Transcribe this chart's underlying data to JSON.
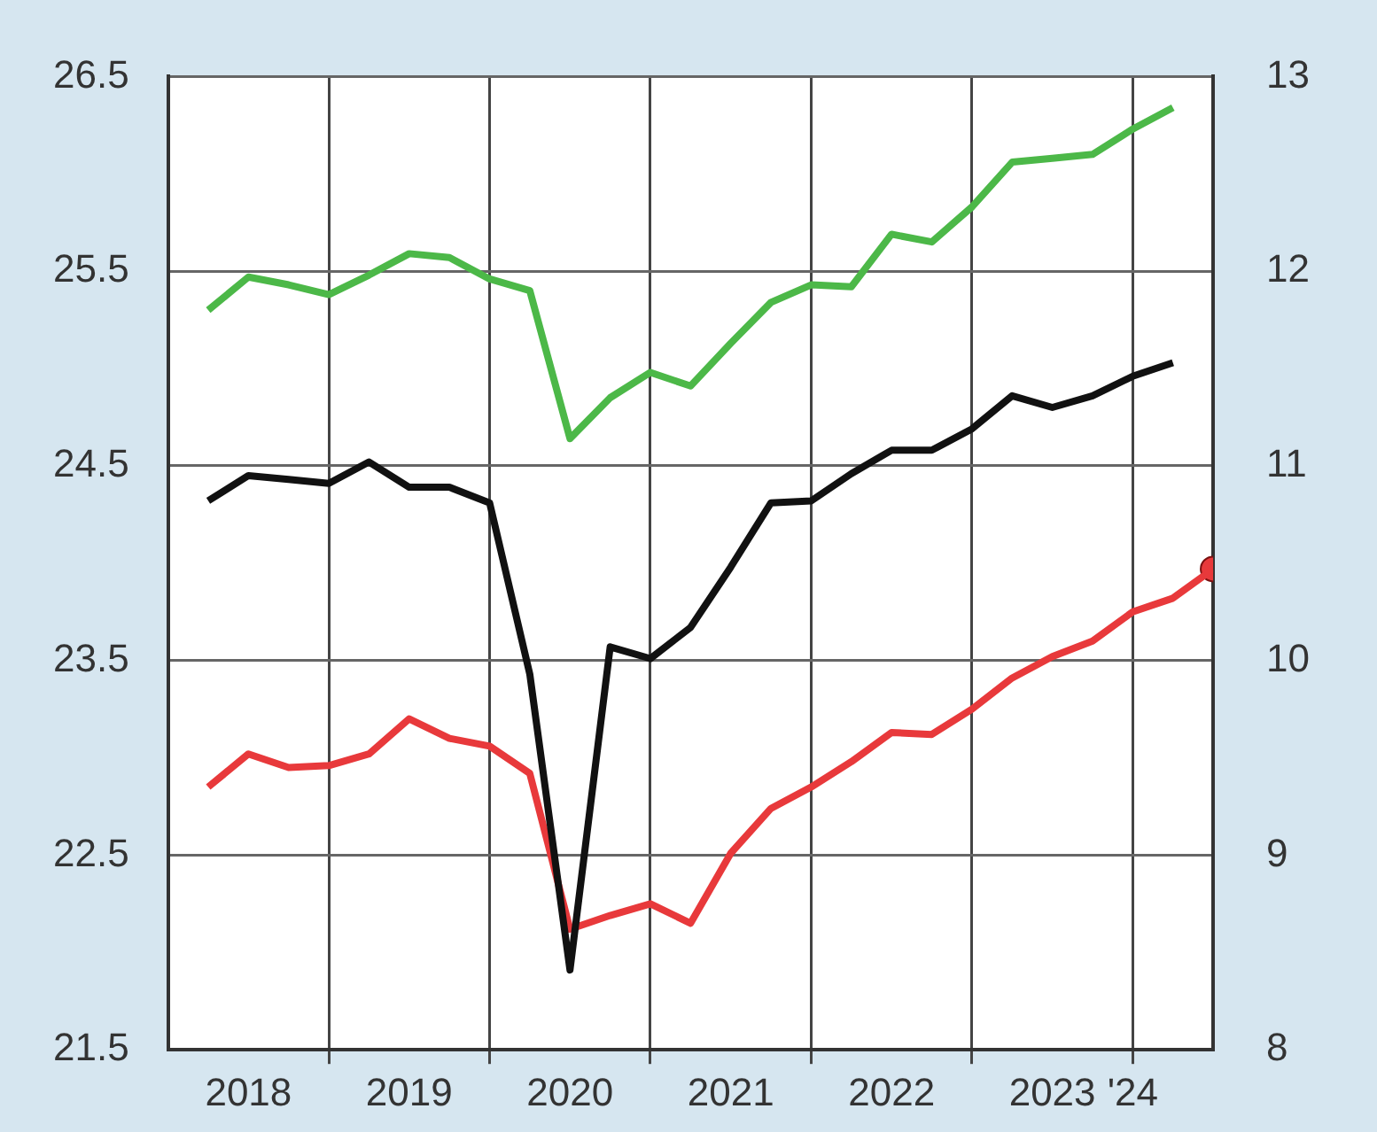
{
  "chart_data": {
    "type": "line",
    "x": [
      2018.25,
      2018.5,
      2018.75,
      2019,
      2019.25,
      2019.5,
      2019.75,
      2020,
      2020.25,
      2020.5,
      2020.75,
      2021,
      2021.25,
      2021.5,
      2021.75,
      2022,
      2022.25,
      2022.5,
      2022.75,
      2023,
      2023.25,
      2023.5,
      2023.75,
      2024,
      2024.25
    ],
    "series": [
      {
        "color": "#4cb848",
        "values": [
          25.3,
          25.47,
          25.43,
          25.38,
          25.48,
          25.59,
          25.57,
          25.46,
          25.4,
          24.64,
          24.85,
          24.98,
          24.91,
          25.13,
          25.34,
          25.43,
          25.42,
          25.69,
          25.65,
          25.83,
          26.06,
          26.08,
          26.1,
          26.23,
          26.34
        ]
      },
      {
        "color": "#111111",
        "values": [
          24.32,
          24.45,
          24.43,
          24.41,
          24.52,
          24.39,
          24.39,
          24.31,
          23.43,
          21.91,
          23.57,
          23.51,
          23.67,
          23.98,
          24.31,
          24.32,
          24.46,
          24.58,
          24.58,
          24.69,
          24.86,
          24.8,
          24.86,
          24.96,
          25.03
        ]
      },
      {
        "color": "#e8393b",
        "axis": "y2",
        "x": [
          2018.25,
          2018.5,
          2018.75,
          2019,
          2019.25,
          2019.5,
          2019.75,
          2020,
          2020.25,
          2020.5,
          2020.75,
          2021,
          2021.25,
          2021.5,
          2021.75,
          2022,
          2022.25,
          2022.5,
          2022.75,
          2023,
          2023.25,
          2023.5,
          2023.75,
          2024,
          2024.25,
          2024.5
        ],
        "values": [
          9.35,
          9.52,
          9.45,
          9.46,
          9.52,
          9.7,
          9.6,
          9.56,
          9.42,
          8.62,
          8.69,
          8.75,
          8.65,
          9.01,
          9.24,
          9.35,
          9.48,
          9.63,
          9.62,
          9.75,
          9.91,
          10.02,
          10.1,
          10.25,
          10.32,
          10.47
        ]
      },
      {
        "type": "scatter",
        "color": "#e8393b",
        "axis": "y2",
        "marker": "circle",
        "x": [
          2024.5
        ],
        "values": [
          10.47
        ]
      }
    ],
    "xlim": [
      2018,
      2024.5
    ],
    "xticks": [
      {
        "value": 2018.5,
        "label": "2018"
      },
      {
        "value": 2019,
        "label": null
      },
      {
        "value": 2019.5,
        "label": "2019"
      },
      {
        "value": 2020,
        "label": null
      },
      {
        "value": 2020.5,
        "label": "2020"
      },
      {
        "value": 2021,
        "label": null
      },
      {
        "value": 2021.5,
        "label": "2021"
      },
      {
        "value": 2022,
        "label": null
      },
      {
        "value": 2022.5,
        "label": "2022"
      },
      {
        "value": 2023,
        "label": null
      },
      {
        "value": 2023.5,
        "label": "2023"
      },
      {
        "value": 2024,
        "label": "'24"
      }
    ],
    "ylim": [
      21.5,
      26.5
    ],
    "yticks": [
      21.5,
      22.5,
      23.5,
      24.5,
      25.5,
      26.5
    ],
    "y2lim": [
      8,
      13
    ],
    "y2ticks": [
      8,
      9,
      10,
      11,
      12,
      13
    ],
    "grid": true,
    "legend": false,
    "marker": "none",
    "line_style": "solid"
  }
}
